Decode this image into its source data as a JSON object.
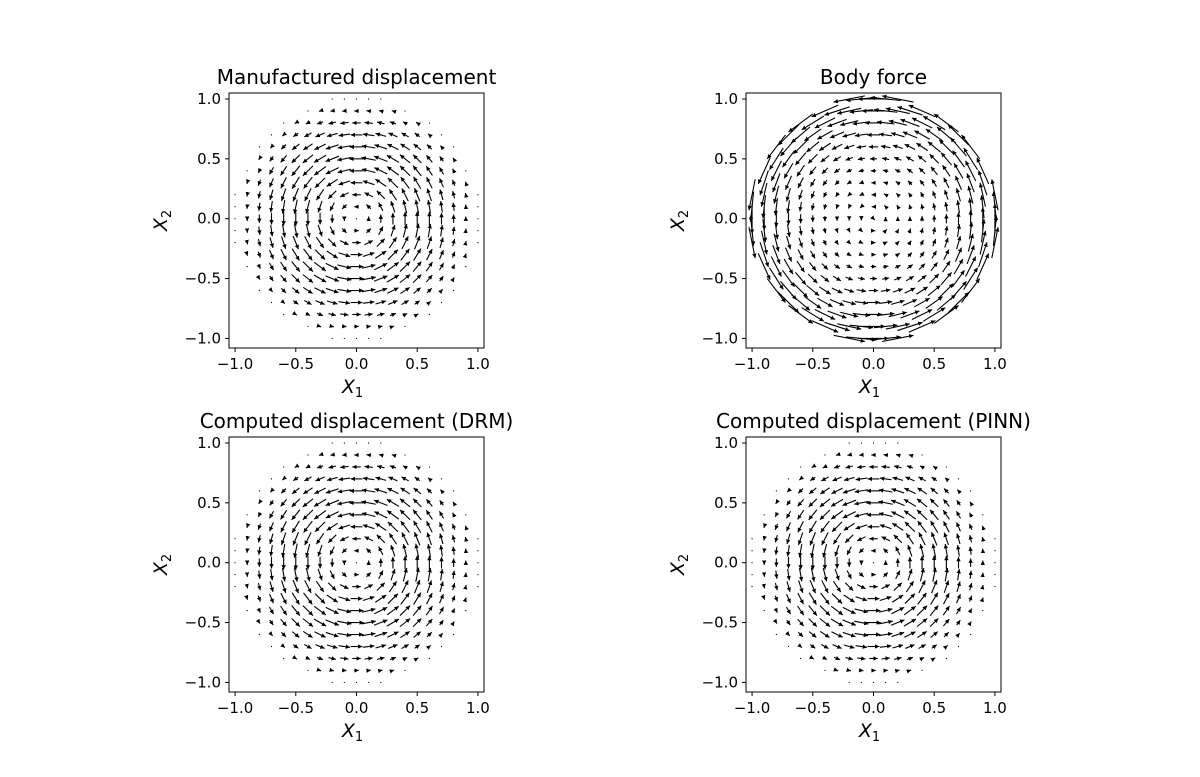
{
  "chart_data": [
    {
      "type": "quiver",
      "title": "Manufactured displacement",
      "xlabel": "X",
      "xlabel_sub": "1",
      "ylabel": "X",
      "ylabel_sub": "2",
      "xlim": [
        -1.05,
        1.05
      ],
      "ylim": [
        -1.08,
        1.05
      ],
      "xticks": [
        "−1.0",
        "−0.5",
        "0.0",
        "0.5",
        "1.0"
      ],
      "yticks": [
        "−1.0",
        "−0.5",
        "0.0",
        "0.5",
        "1.0"
      ],
      "field": "rotational",
      "grid_step": 0.1,
      "domain_radius": 1.0,
      "vector_scale": 1.0
    },
    {
      "type": "quiver",
      "title": "Body force",
      "xlabel": "X",
      "xlabel_sub": "1",
      "ylabel": "X",
      "ylabel_sub": "2",
      "xlim": [
        -1.05,
        1.05
      ],
      "ylim": [
        -1.08,
        1.05
      ],
      "xticks": [
        "−1.0",
        "−0.5",
        "0.0",
        "0.5",
        "1.0"
      ],
      "yticks": [
        "−1.0",
        "−0.5",
        "0.0",
        "0.5",
        "1.0"
      ],
      "field": "body_force",
      "grid_step": 0.1,
      "domain_radius": 1.0,
      "vector_scale": 1.0
    },
    {
      "type": "quiver",
      "title": "Computed displacement (DRM)",
      "xlabel": "X",
      "xlabel_sub": "1",
      "ylabel": "X",
      "ylabel_sub": "2",
      "xlim": [
        -1.05,
        1.05
      ],
      "ylim": [
        -1.08,
        1.05
      ],
      "xticks": [
        "−1.0",
        "−0.5",
        "0.0",
        "0.5",
        "1.0"
      ],
      "yticks": [
        "−1.0",
        "−0.5",
        "0.0",
        "0.5",
        "1.0"
      ],
      "field": "rotational",
      "grid_step": 0.1,
      "domain_radius": 1.0,
      "vector_scale": 1.0
    },
    {
      "type": "quiver",
      "title": "Computed displacement (PINN)",
      "xlabel": "X",
      "xlabel_sub": "1",
      "ylabel": "X",
      "ylabel_sub": "2",
      "xlim": [
        -1.05,
        1.05
      ],
      "ylim": [
        -1.08,
        1.05
      ],
      "xticks": [
        "−1.0",
        "−0.5",
        "0.0",
        "0.5",
        "1.0"
      ],
      "yticks": [
        "−1.0",
        "−0.5",
        "0.0",
        "0.5",
        "1.0"
      ],
      "field": "rotational",
      "grid_step": 0.1,
      "domain_radius": 1.0,
      "vector_scale": 1.0
    }
  ]
}
